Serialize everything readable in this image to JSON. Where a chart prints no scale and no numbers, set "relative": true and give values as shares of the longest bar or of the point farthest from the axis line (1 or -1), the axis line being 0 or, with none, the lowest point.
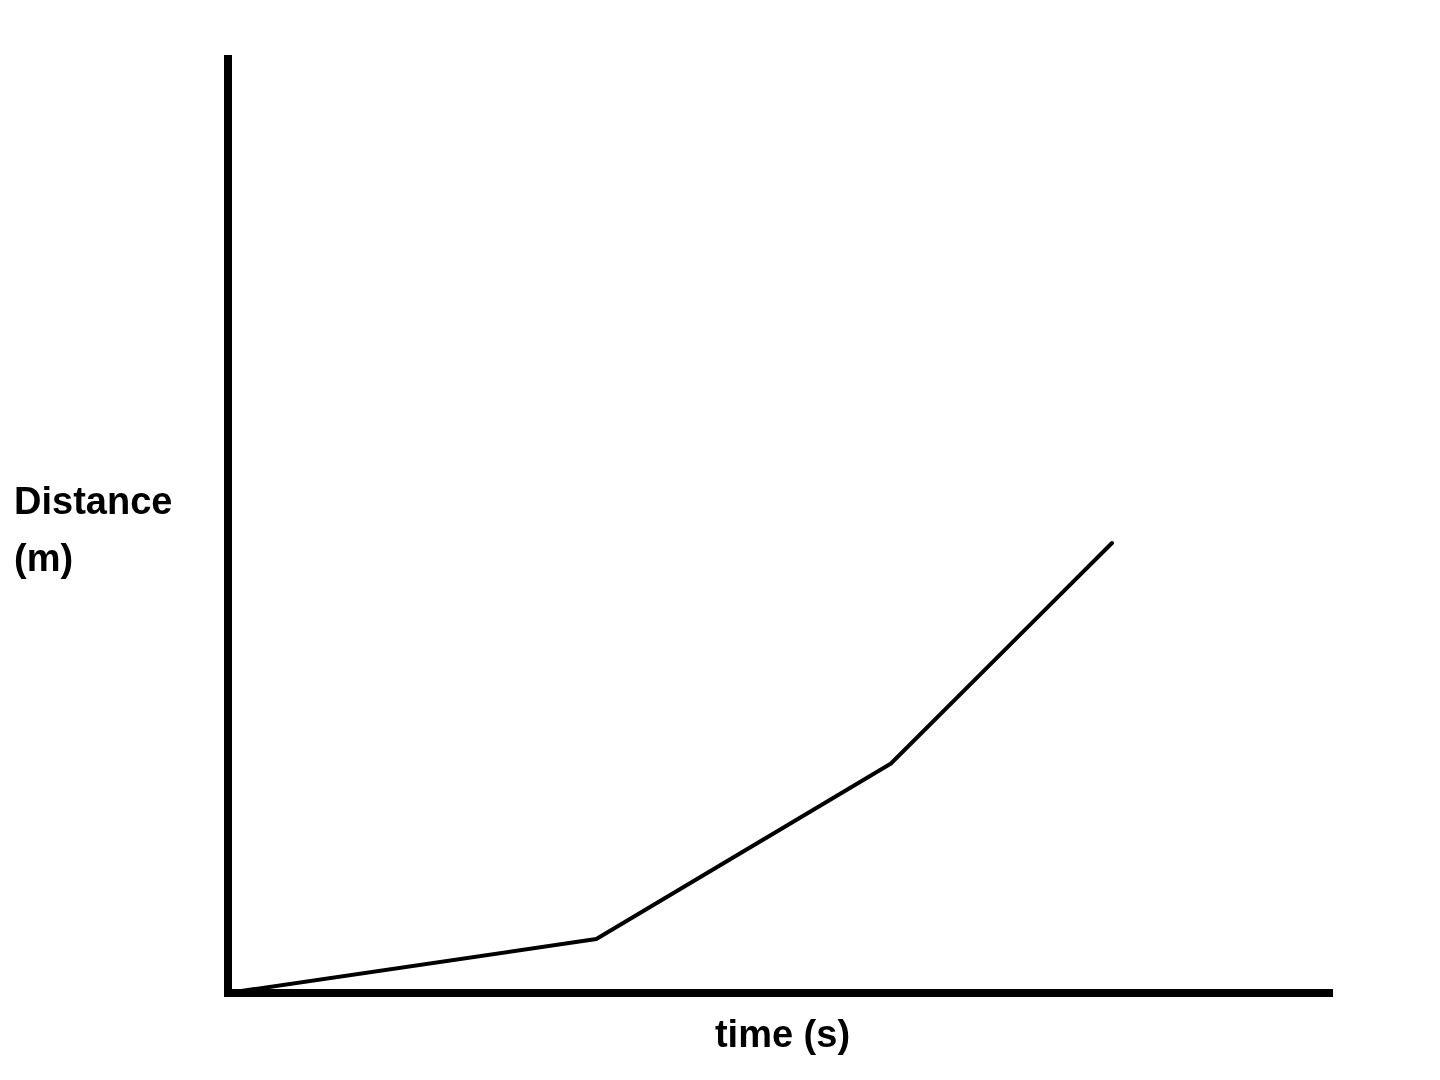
{
  "chart_data": {
    "type": "line",
    "xlabel": "time (s)",
    "ylabel": "Distance (m)",
    "relative": true,
    "categories": [
      null,
      null,
      null,
      null,
      null,
      null,
      null,
      null,
      null,
      null,
      null,
      null,
      null,
      null,
      null,
      null
    ],
    "series": [
      {
        "color": "#000000",
        "values": [
          0,
          null,
          null,
          null,
          null,
          0.12,
          null,
          null,
          null,
          0.51,
          null,
          null,
          1,
          null,
          null,
          null
        ]
      }
    ],
    "marker": "none",
    "line_style": "solid"
  }
}
